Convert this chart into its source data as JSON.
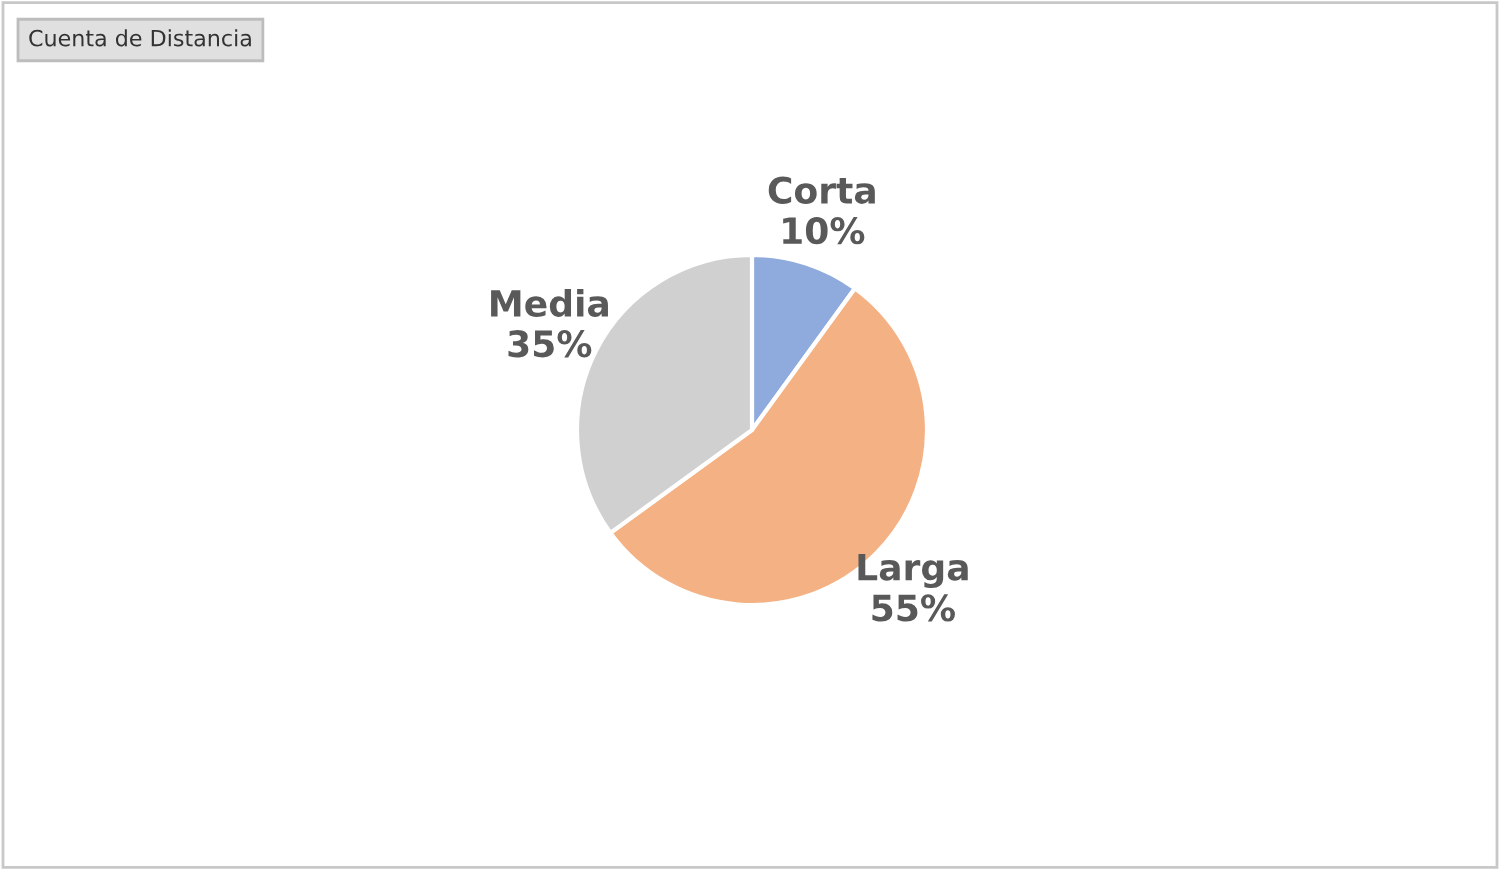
{
  "chart_data": {
    "type": "pie",
    "title": "Cuenta de Distancia",
    "categories": [
      "Corta",
      "Larga",
      "Media"
    ],
    "values": [
      10,
      55,
      35
    ],
    "value_labels": [
      "10%",
      "55%",
      "35%"
    ],
    "colors": [
      "#8faadc",
      "#f4b183",
      "#d0d0d0"
    ]
  }
}
